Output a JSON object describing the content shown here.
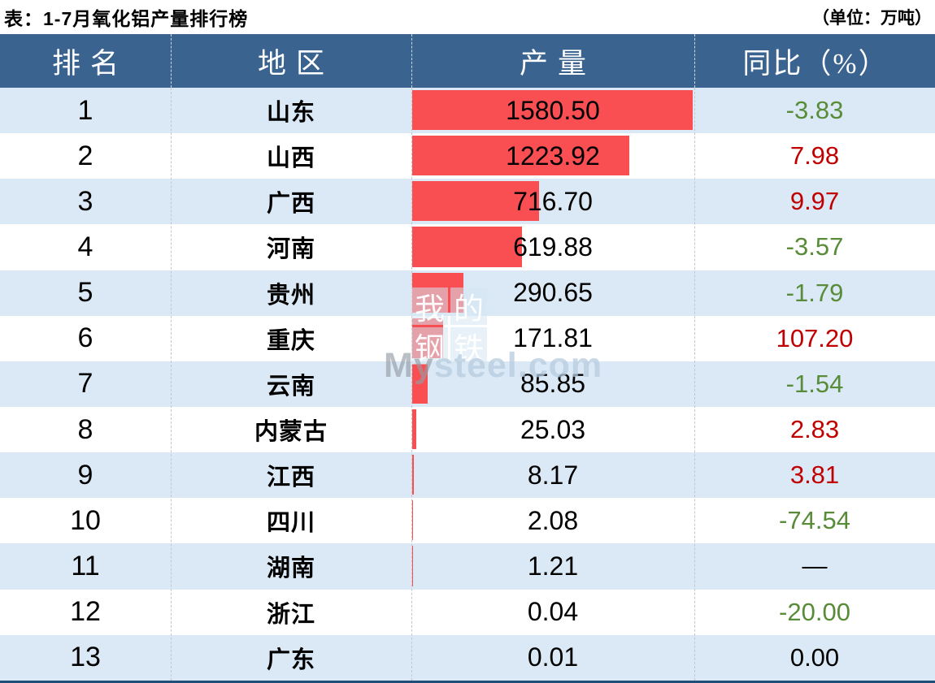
{
  "colors": {
    "header_bg": "#3A6390",
    "row_alt_bg": "#DBE9F6",
    "bar": "#F94F52",
    "positive_text": "#C00000",
    "negative_text": "#588C38",
    "neutral_text": "#000000",
    "border_bottom": "#1F4E79",
    "header_text": "#FFFFFF"
  },
  "titlebar": {
    "title": "表：1-7月氧化铝产量排行榜",
    "unit": "（单位：万吨）"
  },
  "watermark": {
    "tiles": {
      "t0": "我",
      "t1": "的",
      "t2": "钢",
      "t3": "铁"
    },
    "brand_bold": "My",
    "brand_rest": "steel.com"
  },
  "table": {
    "headers": {
      "rank": "排名",
      "region": "地区",
      "production": "产量",
      "yoy": "同比（%）"
    },
    "rows": [
      {
        "rank": "1",
        "region": "山东",
        "production": "1580.50",
        "yoy": "-3.83"
      },
      {
        "rank": "2",
        "region": "山西",
        "production": "1223.92",
        "yoy": "7.98"
      },
      {
        "rank": "3",
        "region": "广西",
        "production": "716.70",
        "yoy": "9.97"
      },
      {
        "rank": "4",
        "region": "河南",
        "production": "619.88",
        "yoy": "-3.57"
      },
      {
        "rank": "5",
        "region": "贵州",
        "production": "290.65",
        "yoy": "-1.79"
      },
      {
        "rank": "6",
        "region": "重庆",
        "production": "171.81",
        "yoy": "107.20"
      },
      {
        "rank": "7",
        "region": "云南",
        "production": "85.85",
        "yoy": "-1.54"
      },
      {
        "rank": "8",
        "region": "内蒙古",
        "production": "25.03",
        "yoy": "2.83"
      },
      {
        "rank": "9",
        "region": "江西",
        "production": "8.17",
        "yoy": "3.81"
      },
      {
        "rank": "10",
        "region": "四川",
        "production": "2.08",
        "yoy": "-74.54"
      },
      {
        "rank": "11",
        "region": "湖南",
        "production": "1.21",
        "yoy": "—"
      },
      {
        "rank": "12",
        "region": "浙江",
        "production": "0.04",
        "yoy": "-20.00"
      },
      {
        "rank": "13",
        "region": "广东",
        "production": "0.01",
        "yoy": "0.00"
      }
    ]
  },
  "chart_data": {
    "type": "table",
    "title": "表：1-7月氧化铝产量排行榜",
    "unit": "万吨",
    "columns": [
      "排名",
      "地区",
      "产量",
      "同比（%）"
    ],
    "categories": [
      "山东",
      "山西",
      "广西",
      "河南",
      "贵州",
      "重庆",
      "云南",
      "内蒙古",
      "江西",
      "四川",
      "湖南",
      "浙江",
      "广东"
    ],
    "series": [
      {
        "name": "产量",
        "values": [
          1580.5,
          1223.92,
          716.7,
          619.88,
          290.65,
          171.81,
          85.85,
          25.03,
          8.17,
          2.08,
          1.21,
          0.04,
          0.01
        ]
      },
      {
        "name": "同比（%）",
        "values": [
          -3.83,
          7.98,
          9.97,
          -3.57,
          -1.79,
          107.2,
          -1.54,
          2.83,
          3.81,
          -74.54,
          null,
          -20.0,
          0.0
        ]
      }
    ],
    "layout_hints": {
      "bars_inline_in_production_column": true,
      "bar_color": "#F94F52",
      "max_bar_value": 1580.5
    }
  }
}
